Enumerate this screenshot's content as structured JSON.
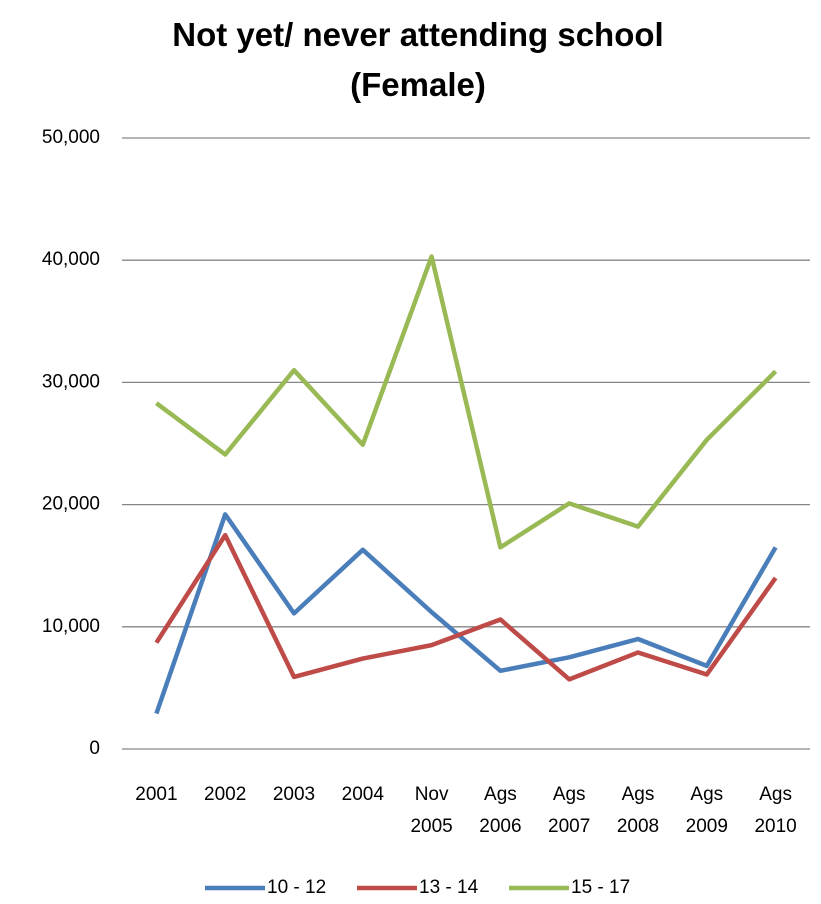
{
  "chart_data": {
    "type": "line",
    "title": "Not yet/ never attending school (Female)",
    "categories": [
      "2001",
      "2002",
      "2003",
      "2004",
      "Nov 2005",
      "Ags 2006",
      "Ags 2007",
      "Ags 2008",
      "Ags 2009",
      "Ags 2010"
    ],
    "series": [
      {
        "name": "10 - 12",
        "color": "#4a7ebb",
        "values": [
          2900,
          19200,
          11100,
          16300,
          11200,
          6400,
          7500,
          9000,
          6800,
          16500
        ]
      },
      {
        "name": "13 - 14",
        "color": "#be4b48",
        "values": [
          8700,
          17500,
          5900,
          7400,
          8500,
          10600,
          5700,
          7900,
          6100,
          14000
        ]
      },
      {
        "name": "15 - 17",
        "color": "#98b954",
        "values": [
          28300,
          24100,
          31000,
          24900,
          40300,
          16500,
          20100,
          18200,
          25300,
          30900
        ]
      }
    ],
    "ylim": [
      0,
      50000
    ],
    "yticks": [
      0,
      {
        "value": 10000,
        "label": "10,000"
      },
      {
        "value": 20000,
        "label": "20,000"
      },
      {
        "value": 30000,
        "label": "30,000"
      },
      {
        "value": 40000,
        "label": "40,000"
      },
      {
        "value": 50000,
        "label": "50,000"
      }
    ],
    "grid": true,
    "legend": "bottom"
  }
}
